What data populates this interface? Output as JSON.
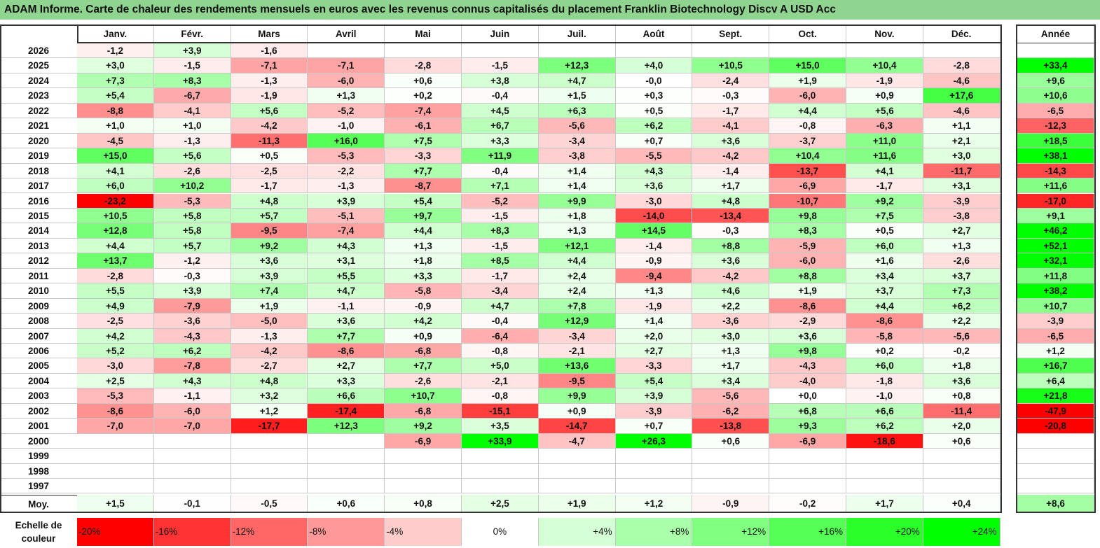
{
  "title": "ADAM Informe. Carte de chaleur des rendements mensuels en euros avec les revenus connus capitalisés du placement Franklin Biotechnology Discv A USD Acc",
  "chart_data": {
    "type": "heatmap",
    "title": "ADAM Informe. Carte de chaleur des rendements mensuels en euros avec les revenus connus capitalisés du placement Franklin Biotechnology Discv A USD Acc",
    "months": [
      "Janv.",
      "Févr.",
      "Mars",
      "Avril",
      "Mai",
      "Juin",
      "Juil.",
      "Août",
      "Sept.",
      "Oct.",
      "Nov.",
      "Déc."
    ],
    "year_header": "Année",
    "avg_label": "Moy.",
    "rows": [
      {
        "year": "2026",
        "months": [
          "-1,2",
          "+3,9",
          "-1,6",
          "",
          "",
          "",
          "",
          "",
          "",
          "",
          "",
          ""
        ],
        "annual": ""
      },
      {
        "year": "2025",
        "months": [
          "+3,0",
          "-1,5",
          "-7,1",
          "-7,1",
          "-2,8",
          "-1,5",
          "+12,3",
          "+4,0",
          "+10,5",
          "+15,0",
          "+10,4",
          "-2,8"
        ],
        "annual": "+33,4"
      },
      {
        "year": "2024",
        "months": [
          "+7,3",
          "+8,3",
          "-1,3",
          "-6,0",
          "+0,6",
          "+3,8",
          "+4,7",
          "-0,0",
          "-2,4",
          "+1,9",
          "-1,9",
          "-4,6"
        ],
        "annual": "+9,6"
      },
      {
        "year": "2023",
        "months": [
          "+5,4",
          "-6,7",
          "-1,9",
          "+1,3",
          "+0,2",
          "-0,4",
          "+1,5",
          "+0,3",
          "-0,3",
          "-6,0",
          "+0,9",
          "+17,6"
        ],
        "annual": "+10,6"
      },
      {
        "year": "2022",
        "months": [
          "-8,8",
          "-4,1",
          "+5,6",
          "-5,2",
          "-7,4",
          "+4,5",
          "+6,3",
          "+0,5",
          "-1,7",
          "+4,4",
          "+5,6",
          "-4,6"
        ],
        "annual": "-6,5"
      },
      {
        "year": "2021",
        "months": [
          "+1,0",
          "+1,0",
          "-4,2",
          "-1,0",
          "-6,1",
          "+6,7",
          "-5,6",
          "+6,2",
          "-4,1",
          "-0,8",
          "-6,3",
          "+1,1"
        ],
        "annual": "-12,3"
      },
      {
        "year": "2020",
        "months": [
          "-4,5",
          "-1,3",
          "-11,3",
          "+16,0",
          "+7,5",
          "+3,3",
          "-3,4",
          "+0,7",
          "+3,6",
          "-3,7",
          "+11,0",
          "+2,1"
        ],
        "annual": "+18,5"
      },
      {
        "year": "2019",
        "months": [
          "+15,0",
          "+5,6",
          "+0,5",
          "-5,3",
          "-3,3",
          "+11,9",
          "-3,8",
          "-5,5",
          "-4,2",
          "+10,4",
          "+11,6",
          "+3,0"
        ],
        "annual": "+38,1"
      },
      {
        "year": "2018",
        "months": [
          "+4,1",
          "-2,6",
          "-2,5",
          "-2,2",
          "+7,7",
          "-0,4",
          "+1,4",
          "+4,3",
          "-1,4",
          "-13,7",
          "+4,1",
          "-11,7"
        ],
        "annual": "-14,3"
      },
      {
        "year": "2017",
        "months": [
          "+6,0",
          "+10,2",
          "-1,7",
          "-1,3",
          "-8,7",
          "+7,1",
          "+1,4",
          "+3,6",
          "+1,7",
          "-6,9",
          "-1,7",
          "+3,1"
        ],
        "annual": "+11,6"
      },
      {
        "year": "2016",
        "months": [
          "-23,2",
          "-5,3",
          "+4,8",
          "+3,9",
          "+5,4",
          "-5,2",
          "+9,9",
          "-3,0",
          "+4,8",
          "-10,7",
          "+9,2",
          "-3,9"
        ],
        "annual": "-17,0"
      },
      {
        "year": "2015",
        "months": [
          "+10,5",
          "+5,8",
          "+5,7",
          "-5,1",
          "+9,7",
          "-1,5",
          "+1,8",
          "-14,0",
          "-13,4",
          "+9,8",
          "+7,5",
          "-3,8"
        ],
        "annual": "+9,1"
      },
      {
        "year": "2014",
        "months": [
          "+12,8",
          "+5,8",
          "-9,5",
          "-7,4",
          "+4,4",
          "+8,3",
          "+1,3",
          "+14,5",
          "-0,3",
          "+8,3",
          "+0,5",
          "+2,7"
        ],
        "annual": "+46,2"
      },
      {
        "year": "2013",
        "months": [
          "+4,4",
          "+5,7",
          "+9,2",
          "+4,3",
          "+1,3",
          "-1,5",
          "+12,1",
          "-1,4",
          "+8,8",
          "-5,9",
          "+6,0",
          "+1,3"
        ],
        "annual": "+52,1"
      },
      {
        "year": "2012",
        "months": [
          "+13,7",
          "-1,2",
          "+3,6",
          "+3,1",
          "+1,8",
          "+8,5",
          "+4,4",
          "-0,9",
          "+3,6",
          "-6,0",
          "+1,6",
          "-2,6"
        ],
        "annual": "+32,1"
      },
      {
        "year": "2011",
        "months": [
          "-2,8",
          "-0,3",
          "+3,9",
          "+5,5",
          "+3,3",
          "-1,7",
          "+2,4",
          "-9,4",
          "-4,2",
          "+8,8",
          "+3,4",
          "+3,7"
        ],
        "annual": "+11,8"
      },
      {
        "year": "2010",
        "months": [
          "+5,5",
          "+3,9",
          "+7,4",
          "+4,7",
          "-5,8",
          "-3,4",
          "+2,4",
          "+1,3",
          "+4,6",
          "+1,9",
          "+3,7",
          "+7,3"
        ],
        "annual": "+38,2"
      },
      {
        "year": "2009",
        "months": [
          "+4,9",
          "-7,9",
          "+1,9",
          "-1,1",
          "-0,9",
          "+4,7",
          "+7,8",
          "-1,9",
          "+2,2",
          "-8,6",
          "+4,4",
          "+6,2"
        ],
        "annual": "+10,7"
      },
      {
        "year": "2008",
        "months": [
          "-2,5",
          "-3,6",
          "-5,0",
          "+3,6",
          "+4,2",
          "-0,4",
          "+12,9",
          "+1,4",
          "-3,6",
          "-2,9",
          "-8,6",
          "+2,2"
        ],
        "annual": "-3,9"
      },
      {
        "year": "2007",
        "months": [
          "+4,2",
          "-4,3",
          "-1,3",
          "+7,7",
          "+0,9",
          "-6,4",
          "-3,4",
          "+2,0",
          "+3,0",
          "+3,6",
          "-5,8",
          "-5,6"
        ],
        "annual": "-6,5"
      },
      {
        "year": "2006",
        "months": [
          "+5,2",
          "+6,2",
          "-4,2",
          "-8,6",
          "-6,8",
          "-0,8",
          "-2,1",
          "+2,7",
          "+1,3",
          "+9,8",
          "+0,2",
          "-0,2"
        ],
        "annual": "+1,2"
      },
      {
        "year": "2005",
        "months": [
          "-3,0",
          "-7,8",
          "-2,7",
          "+2,7",
          "+7,7",
          "+5,0",
          "+13,6",
          "-3,3",
          "+1,7",
          "-4,3",
          "+6,0",
          "+1,8"
        ],
        "annual": "+16,7"
      },
      {
        "year": "2004",
        "months": [
          "+2,5",
          "+4,3",
          "+4,8",
          "+3,3",
          "-2,6",
          "-2,1",
          "-9,5",
          "+5,4",
          "+3,4",
          "-4,0",
          "-1,8",
          "+3,6"
        ],
        "annual": "+6,4"
      },
      {
        "year": "2003",
        "months": [
          "-5,3",
          "-1,1",
          "+3,2",
          "+6,6",
          "+10,7",
          "-0,8",
          "+9,9",
          "+3,9",
          "-5,6",
          "+0,0",
          "-1,0",
          "+0,8"
        ],
        "annual": "+21,8"
      },
      {
        "year": "2002",
        "months": [
          "-8,6",
          "-6,0",
          "+1,2",
          "-17,4",
          "-6,8",
          "-15,1",
          "+0,9",
          "-3,9",
          "-6,2",
          "+6,8",
          "+6,6",
          "-11,4"
        ],
        "annual": "-47,9"
      },
      {
        "year": "2001",
        "months": [
          "-7,0",
          "-7,0",
          "-17,7",
          "+12,3",
          "+9,2",
          "+3,5",
          "-14,7",
          "+0,7",
          "-13,8",
          "+9,3",
          "+6,2",
          "+2,0"
        ],
        "annual": "-20,8"
      },
      {
        "year": "2000",
        "months": [
          "",
          "",
          "",
          "",
          "-6,9",
          "+33,9",
          "-4,7",
          "+26,3",
          "+0,6",
          "-6,9",
          "-18,6",
          "+0,6"
        ],
        "annual": ""
      },
      {
        "year": "1999",
        "months": [
          "",
          "",
          "",
          "",
          "",
          "",
          "",
          "",
          "",
          "",
          "",
          ""
        ],
        "annual": ""
      },
      {
        "year": "1998",
        "months": [
          "",
          "",
          "",
          "",
          "",
          "",
          "",
          "",
          "",
          "",
          "",
          ""
        ],
        "annual": ""
      },
      {
        "year": "1997",
        "months": [
          "",
          "",
          "",
          "",
          "",
          "",
          "",
          "",
          "",
          "",
          "",
          ""
        ],
        "annual": ""
      }
    ],
    "averages": {
      "months": [
        "+1,5",
        "-0,1",
        "-0,5",
        "+0,6",
        "+0,8",
        "+2,5",
        "+1,9",
        "+1,2",
        "-0,9",
        "-0,2",
        "+1,7",
        "+0,4"
      ],
      "annual": "+8,6"
    },
    "legend": {
      "label": "Echelle de couleur",
      "steps": [
        "-20%",
        "-16%",
        "-12%",
        "-8%",
        "-4%",
        "0%",
        "+4%",
        "+8%",
        "+12%",
        "+16%",
        "+20%",
        "+24%"
      ],
      "step_values": [
        -20,
        -16,
        -12,
        -8,
        -4,
        0,
        4,
        8,
        12,
        16,
        20,
        24
      ]
    },
    "color_scale": {
      "negative_max": "#ff0000",
      "positive_max": "#00ff00",
      "neutral": "#ffffff",
      "min": -20,
      "max": 24
    }
  }
}
